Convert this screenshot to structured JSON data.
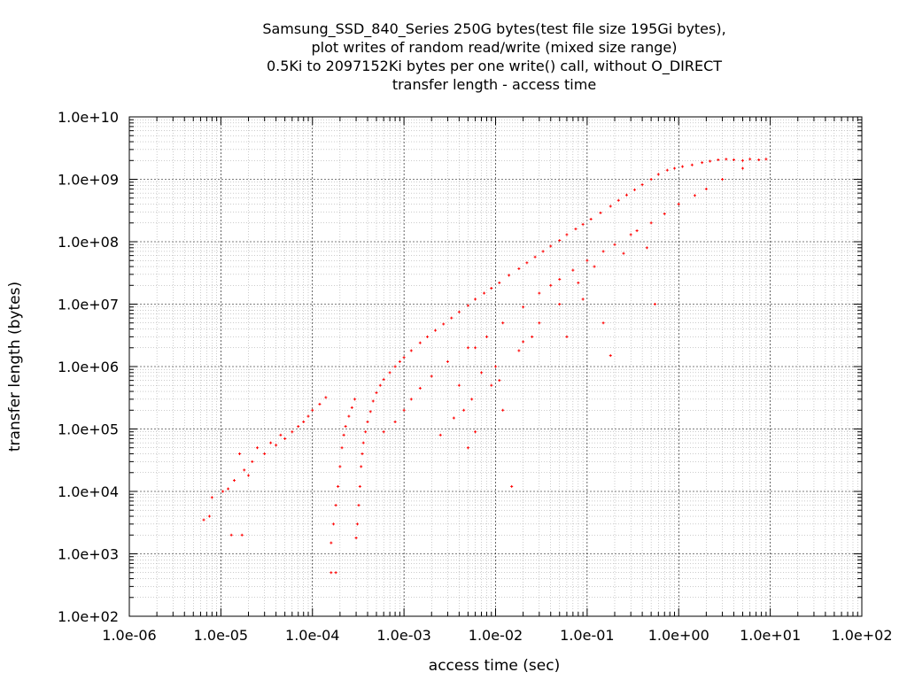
{
  "chart_data": {
    "type": "scatter",
    "title_lines": [
      "Samsung_SSD_840_Series 250G bytes(test file size 195Gi bytes),",
      "plot writes of random read/write (mixed size range)",
      "0.5Ki to 2097152Ki bytes per one write() call, without O_DIRECT",
      "transfer length - access time"
    ],
    "xlabel": "access time (sec)",
    "ylabel": "transfer length (bytes)",
    "xscale": "log",
    "yscale": "log",
    "xlim": [
      1e-06,
      100
    ],
    "ylim": [
      100,
      10000000000.0
    ],
    "x_tick_labels": [
      "1.0e-06",
      "1.0e-05",
      "1.0e-04",
      "1.0e-03",
      "1.0e-02",
      "1.0e-01",
      "1.0e+00",
      "1.0e+01",
      "1.0e+02"
    ],
    "y_tick_labels": [
      "1.0e+02",
      "1.0e+03",
      "1.0e+04",
      "1.0e+05",
      "1.0e+06",
      "1.0e+07",
      "1.0e+08",
      "1.0e+09",
      "1.0e+10"
    ],
    "grid": true,
    "marker_color": "#ff0000",
    "series": [
      {
        "points": [
          [
            6.5e-06,
            3500.0
          ],
          [
            7.5e-06,
            4000.0
          ],
          [
            8e-06,
            8000.0
          ],
          [
            1.05e-05,
            10000.0
          ],
          [
            1.2e-05,
            11000.0
          ],
          [
            1.3e-05,
            2000.0
          ],
          [
            1.7e-05,
            2000.0
          ],
          [
            1.4e-05,
            15000.0
          ],
          [
            1.6e-05,
            40000.0
          ],
          [
            1.8e-05,
            22000.0
          ],
          [
            2e-05,
            18000.0
          ],
          [
            2.2e-05,
            30000.0
          ],
          [
            2.5e-05,
            50000.0
          ],
          [
            3e-05,
            40000.0
          ],
          [
            3.5e-05,
            60000.0
          ],
          [
            4e-05,
            55000.0
          ],
          [
            4.5e-05,
            80000.0
          ],
          [
            5e-05,
            70000.0
          ],
          [
            6e-05,
            90000.0
          ],
          [
            7e-05,
            110000.0
          ],
          [
            8e-05,
            130000.0
          ],
          [
            9e-05,
            160000.0
          ],
          [
            0.0001,
            200000.0
          ],
          [
            0.00012,
            250000.0
          ],
          [
            0.00014,
            320000.0
          ],
          [
            0.00016,
            500.0
          ],
          [
            0.00018,
            500.0
          ],
          [
            0.00016,
            1500.0
          ],
          [
            0.00017,
            3000.0
          ],
          [
            0.00018,
            6000.0
          ],
          [
            0.00019,
            12000.0
          ],
          [
            0.0002,
            25000.0
          ],
          [
            0.00021,
            50000.0
          ],
          [
            0.00022,
            80000.0
          ],
          [
            0.00023,
            110000.0
          ],
          [
            0.00025,
            160000.0
          ],
          [
            0.00027,
            220000.0
          ],
          [
            0.00029,
            300000.0
          ],
          [
            0.0003,
            1800.0
          ],
          [
            0.00031,
            3000.0
          ],
          [
            0.00032,
            6000.0
          ],
          [
            0.00033,
            12000.0
          ],
          [
            0.00034,
            25000.0
          ],
          [
            0.00035,
            40000.0
          ],
          [
            0.00036,
            60000.0
          ],
          [
            0.00038,
            90000.0
          ],
          [
            0.0004,
            130000.0
          ],
          [
            0.00043,
            190000.0
          ],
          [
            0.00046,
            280000.0
          ],
          [
            0.0005,
            380000.0
          ],
          [
            0.00055,
            500000.0
          ],
          [
            0.0006,
            620000.0
          ],
          [
            0.0007,
            800000.0
          ],
          [
            0.0008,
            1000000.0
          ],
          [
            0.0009,
            1200000.0
          ],
          [
            0.001,
            1400000.0
          ],
          [
            0.0012,
            1800000.0
          ],
          [
            0.0015,
            2400000.0
          ],
          [
            0.0018,
            3000000.0
          ],
          [
            0.0022,
            3800000.0
          ],
          [
            0.0027,
            4800000.0
          ],
          [
            0.0033,
            6000000.0
          ],
          [
            0.004,
            7500000.0
          ],
          [
            0.005,
            9500000.0
          ],
          [
            0.006,
            12000000.0
          ],
          [
            0.0075,
            15000000.0
          ],
          [
            0.009,
            18000000.0
          ],
          [
            0.011,
            22000000.0
          ],
          [
            0.014,
            29000000.0
          ],
          [
            0.018,
            37000000.0
          ],
          [
            0.022,
            46000000.0
          ],
          [
            0.027,
            57000000.0
          ],
          [
            0.033,
            70000000.0
          ],
          [
            0.04,
            85000000.0
          ],
          [
            0.05,
            105000000.0
          ],
          [
            0.06,
            130000000.0
          ],
          [
            0.075,
            160000000.0
          ],
          [
            0.09,
            190000000.0
          ],
          [
            0.11,
            230000000.0
          ],
          [
            0.14,
            290000000.0
          ],
          [
            0.18,
            370000000.0
          ],
          [
            0.22,
            460000000.0
          ],
          [
            0.27,
            560000000.0
          ],
          [
            0.33,
            680000000.0
          ],
          [
            0.4,
            820000000.0
          ],
          [
            0.5,
            1000000000.0
          ],
          [
            0.6,
            1200000000.0
          ],
          [
            0.75,
            1400000000.0
          ],
          [
            0.9,
            1500000000.0
          ],
          [
            1.1,
            1600000000.0
          ],
          [
            1.4,
            1700000000.0
          ],
          [
            1.8,
            1850000000.0
          ],
          [
            2.2,
            1950000000.0
          ],
          [
            2.7,
            2050000000.0
          ],
          [
            3.3,
            2100000000.0
          ],
          [
            4.0,
            2050000000.0
          ],
          [
            5.0,
            2000000000.0
          ],
          [
            6.0,
            2100000000.0
          ],
          [
            7.5,
            2050000000.0
          ],
          [
            9.0,
            2100000000.0
          ],
          [
            5.0,
            1500000000.0
          ],
          [
            3.0,
            1000000000.0
          ],
          [
            2.0,
            700000000.0
          ],
          [
            1.5,
            550000000.0
          ],
          [
            1.0,
            400000000.0
          ],
          [
            0.7,
            280000000.0
          ],
          [
            0.5,
            200000000.0
          ],
          [
            0.3,
            130000000.0
          ],
          [
            0.2,
            90000000.0
          ],
          [
            0.15,
            70000000.0
          ],
          [
            0.1,
            50000000.0
          ],
          [
            0.07,
            35000000.0
          ],
          [
            0.05,
            25000000.0
          ],
          [
            0.03,
            15000000.0
          ],
          [
            0.02,
            9000000.0
          ],
          [
            0.012,
            5000000.0
          ],
          [
            0.008,
            3000000.0
          ],
          [
            0.005,
            2000000.0
          ],
          [
            0.003,
            1200000.0
          ],
          [
            0.002,
            700000.0
          ],
          [
            0.0015,
            450000.0
          ],
          [
            0.0012,
            300000.0
          ],
          [
            0.001,
            200000.0
          ],
          [
            0.0008,
            130000.0
          ],
          [
            0.0006,
            90000.0
          ],
          [
            0.004,
            500000.0
          ],
          [
            0.0045,
            200000.0
          ],
          [
            0.005,
            50000.0
          ],
          [
            0.006,
            90000.0
          ],
          [
            0.009,
            500000.0
          ],
          [
            0.012,
            200000.0
          ],
          [
            0.015,
            12000.0
          ],
          [
            0.02,
            2500000.0
          ],
          [
            0.03,
            5000000.0
          ],
          [
            0.05,
            10000000.0
          ],
          [
            0.08,
            22000000.0
          ],
          [
            0.12,
            40000000.0
          ],
          [
            0.15,
            5000000.0
          ],
          [
            0.18,
            1500000.0
          ],
          [
            0.25,
            65000000.0
          ],
          [
            0.35,
            150000000.0
          ],
          [
            0.45,
            80000000.0
          ],
          [
            0.55,
            10000000.0
          ],
          [
            0.025,
            3000000.0
          ],
          [
            0.04,
            20000000.0
          ],
          [
            0.006,
            2000000.0
          ],
          [
            0.01,
            1000000.0
          ],
          [
            0.007,
            800000.0
          ],
          [
            0.0025,
            80000.0
          ],
          [
            0.0035,
            150000.0
          ],
          [
            0.0055,
            300000.0
          ],
          [
            0.011,
            600000.0
          ],
          [
            0.018,
            1800000.0
          ],
          [
            0.06,
            3000000.0
          ],
          [
            0.09,
            12000000.0
          ]
        ]
      }
    ]
  }
}
